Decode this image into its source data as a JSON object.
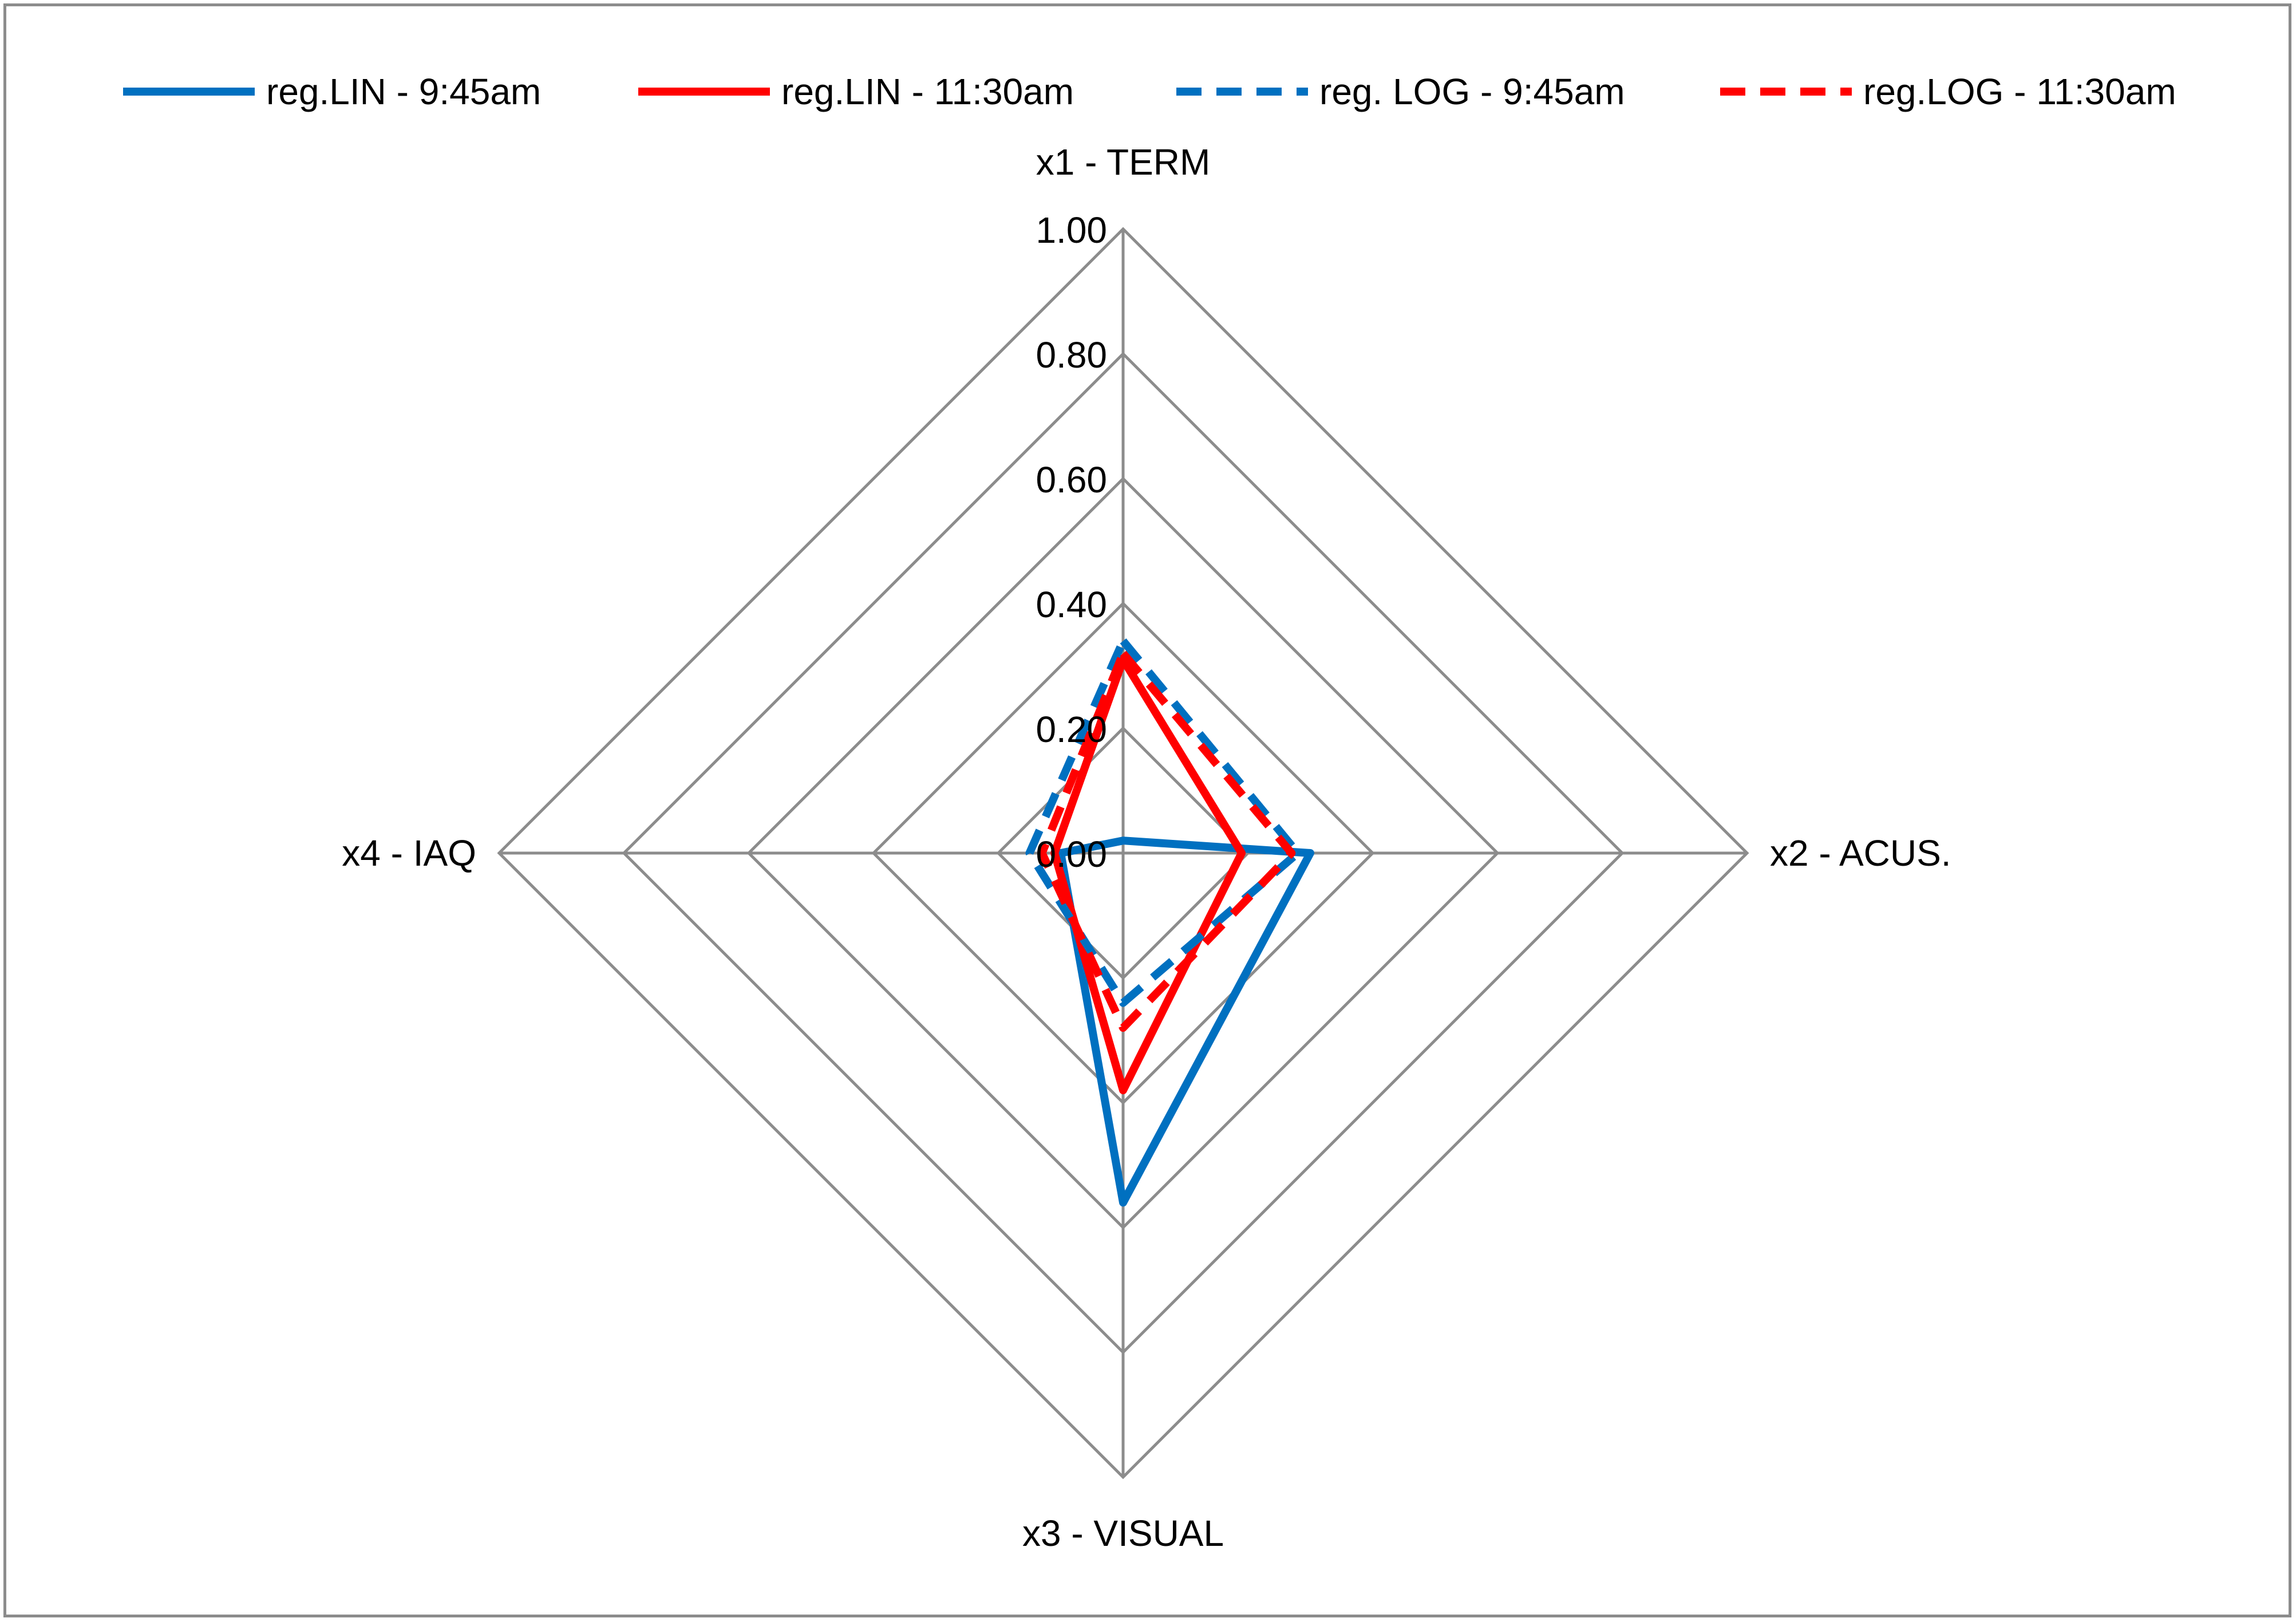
{
  "chart_data": {
    "type": "radar",
    "axes": [
      "x1 - TERM",
      "x2 - ACUS.",
      "x3 - VISUAL",
      "x4 - IAQ"
    ],
    "rmin": 0,
    "rmax": 1,
    "ticks": [
      "0.00",
      "0.20",
      "0.40",
      "0.60",
      "0.80",
      "1.00"
    ],
    "tick_values": [
      0,
      0.2,
      0.4,
      0.6,
      0.8,
      1.0
    ],
    "grid": true,
    "legend_position": "top",
    "series": [
      {
        "name": "reg.LIN - 9:45am",
        "values": [
          0.02,
          0.3,
          0.56,
          0.1
        ],
        "color": "#0070c0",
        "dash": "solid"
      },
      {
        "name": "reg.LIN - 11:30am",
        "values": [
          0.31,
          0.19,
          0.38,
          0.11
        ],
        "color": "#ff0000",
        "dash": "solid"
      },
      {
        "name": "reg. LOG - 9:45am",
        "values": [
          0.34,
          0.28,
          0.24,
          0.15
        ],
        "color": "#0070c0",
        "dash": "dashed"
      },
      {
        "name": "reg.LOG - 11:30am",
        "values": [
          0.32,
          0.27,
          0.28,
          0.13
        ],
        "color": "#ff0000",
        "dash": "dashed"
      }
    ]
  }
}
